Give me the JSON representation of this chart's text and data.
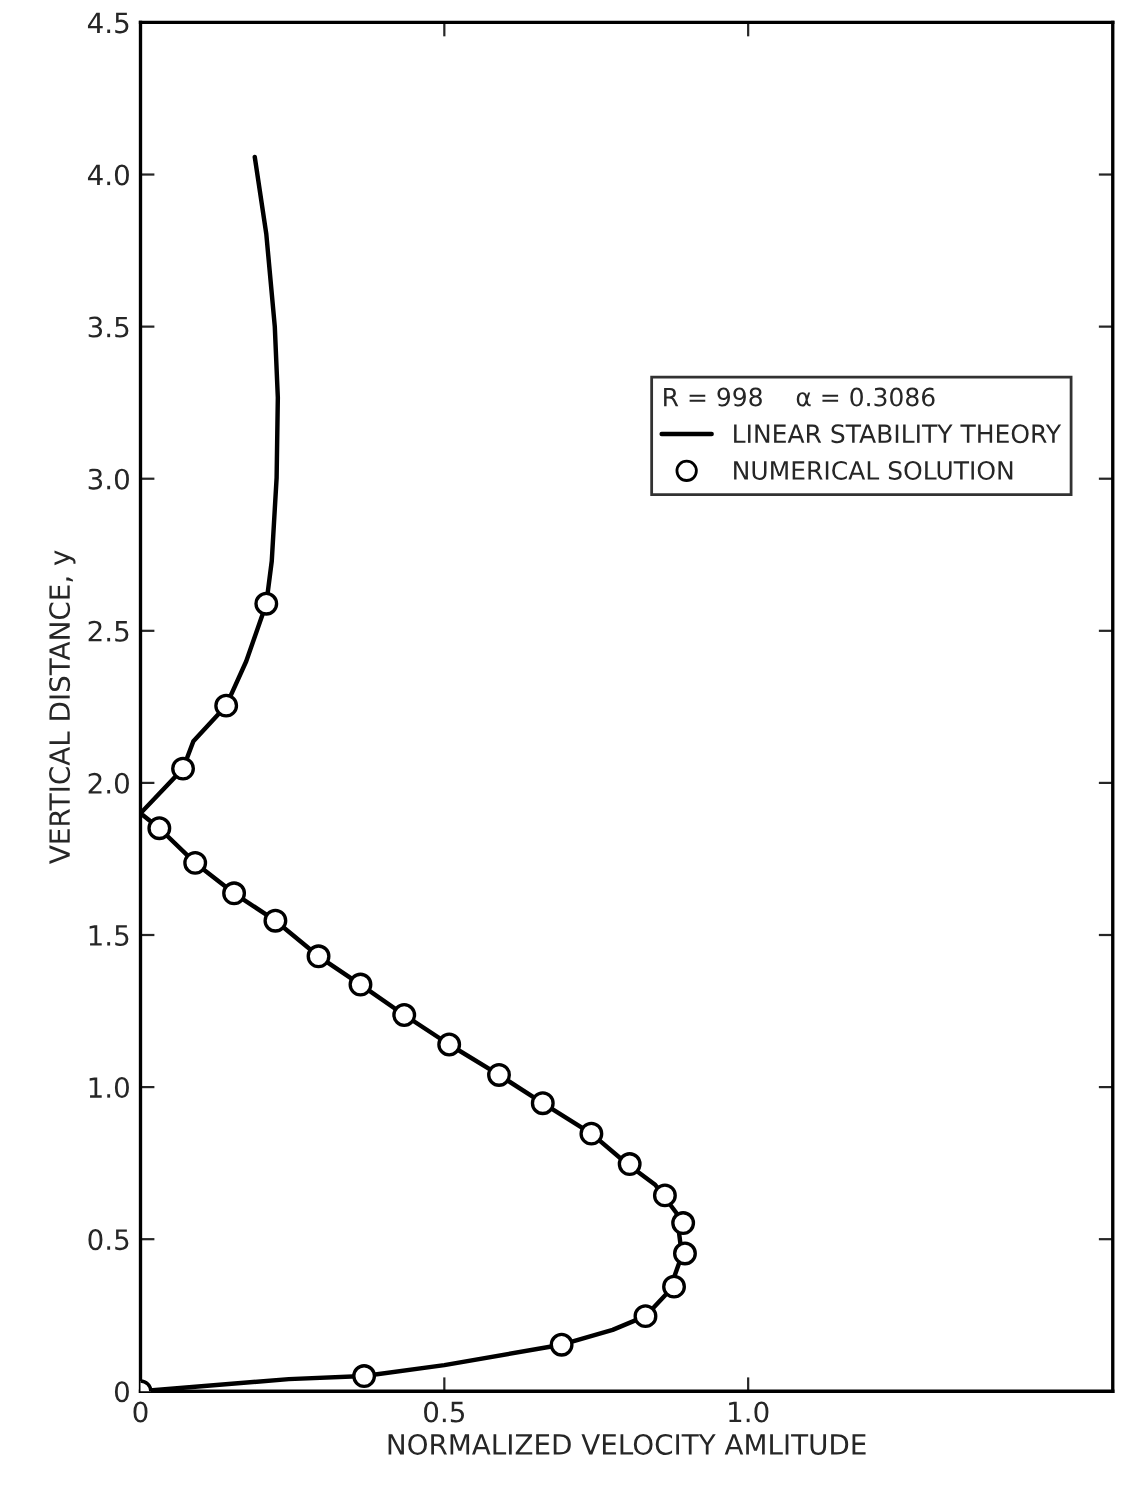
{
  "chart_data": {
    "type": "line",
    "xlabel": "NORMALIZED VELOCITY AMLITUDE",
    "ylabel": "VERTICAL DISTANCE, y",
    "legend_title": "R = 998    α = 0.3086",
    "series": [
      {
        "name": "LINEAR STABILITY THEORY",
        "color": "#000000",
        "marker": "none",
        "line_style": "solid",
        "x": [
          0.0,
          0.244,
          0.368,
          0.5,
          0.693,
          0.777,
          0.831,
          0.87,
          0.891,
          0.882,
          0.847,
          0.8,
          0.742,
          0.662,
          0.59,
          0.508,
          0.434,
          0.362,
          0.293,
          0.222,
          0.154,
          0.09,
          0.031,
          0.0,
          0.07,
          0.087,
          0.141,
          0.174,
          0.207,
          0.216,
          0.224,
          0.226,
          0.221,
          0.207,
          0.188
        ],
        "values": [
          0.0,
          0.04,
          0.05,
          0.086,
          0.153,
          0.202,
          0.247,
          0.33,
          0.447,
          0.586,
          0.679,
          0.749,
          0.847,
          0.947,
          1.04,
          1.14,
          1.237,
          1.337,
          1.43,
          1.547,
          1.637,
          1.737,
          1.851,
          1.9,
          2.047,
          2.137,
          2.254,
          2.4,
          2.589,
          2.729,
          3.003,
          3.267,
          3.5,
          3.805,
          4.058
        ]
      },
      {
        "name": "NUMERICAL SOLUTION",
        "type": "scatter",
        "color": "#000000",
        "marker": "circle",
        "x": [
          0.0,
          0.368,
          0.693,
          0.831,
          0.878,
          0.896,
          0.893,
          0.863,
          0.805,
          0.742,
          0.662,
          0.59,
          0.508,
          0.434,
          0.362,
          0.293,
          0.222,
          0.154,
          0.09,
          0.031,
          0.07,
          0.141,
          0.207
        ],
        "values": [
          0.0,
          0.05,
          0.153,
          0.247,
          0.344,
          0.453,
          0.553,
          0.644,
          0.747,
          0.847,
          0.947,
          1.04,
          1.14,
          1.237,
          1.337,
          1.43,
          1.547,
          1.637,
          1.737,
          1.851,
          2.047,
          2.254,
          2.589
        ]
      }
    ],
    "xlim": [
      0,
      1.6
    ],
    "ylim": [
      0,
      4.5
    ],
    "xticks": [
      0,
      0.5,
      {
        "value": 1.0,
        "label": "1.0"
      }
    ],
    "yticks": [
      0,
      0.5,
      {
        "value": 1.0,
        "label": "1.0"
      },
      1.5,
      {
        "value": 2.0,
        "label": "2.0"
      },
      2.5,
      {
        "value": 3.0,
        "label": "3.0"
      },
      3.5,
      {
        "value": 4.0,
        "label": "4.0"
      },
      4.5
    ],
    "grid": false,
    "legend": "top right"
  }
}
